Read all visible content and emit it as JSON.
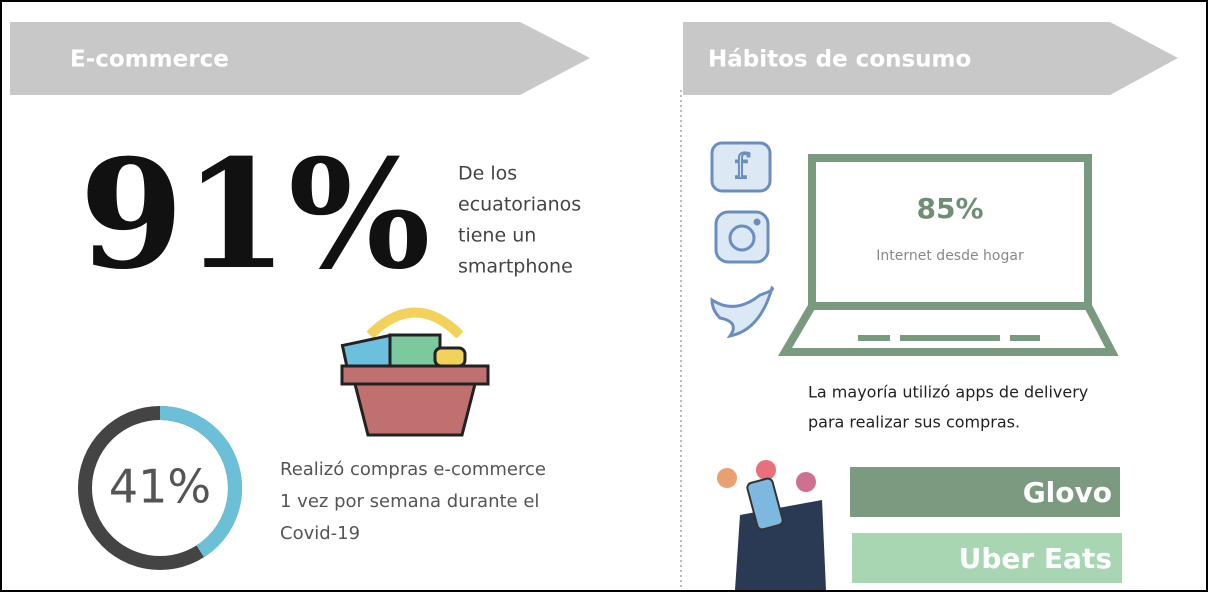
{
  "left": {
    "header": "E-commerce",
    "big_stat": "91%",
    "big_stat_text": [
      "De los",
      "ecuatorianos",
      "tiene un",
      "smartphone"
    ],
    "donut": {
      "value": 41,
      "max": 100,
      "label": "41%"
    },
    "donut_text": [
      "Realizó compras e-commerce",
      "1 vez por semana durante el",
      "Covid-19"
    ]
  },
  "right": {
    "header": "Hábitos de consumo",
    "laptop_stat": "85%",
    "laptop_text": "Internet desde hogar",
    "delivery_text": [
      "La mayoría utilizó apps de delivery",
      "para realizar sus compras."
    ],
    "apps": [
      "Glovo",
      "Uber Eats"
    ]
  }
}
